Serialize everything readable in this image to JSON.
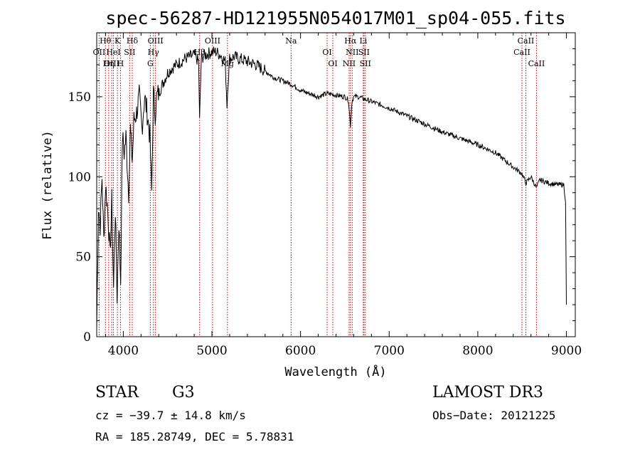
{
  "chart_data": {
    "type": "line",
    "title": "spec-56287-HD121955N054017M01_sp04-055.fits",
    "xlabel": "Wavelength (Å)",
    "ylabel": "Flux (relative)",
    "xlim": [
      3700,
      9100
    ],
    "ylim": [
      0,
      190
    ],
    "xticks": [
      4000,
      5000,
      6000,
      7000,
      8000,
      9000
    ],
    "yticks": [
      0,
      50,
      100,
      150
    ],
    "series": [
      {
        "name": "spectrum",
        "x": [
          3700,
          3720,
          3740,
          3760,
          3780,
          3800,
          3830,
          3850,
          3870,
          3890,
          3910,
          3930,
          3950,
          3970,
          3990,
          4010,
          4030,
          4060,
          4080,
          4101,
          4120,
          4150,
          4180,
          4210,
          4240,
          4270,
          4300,
          4320,
          4340,
          4360,
          4380,
          4420,
          4460,
          4500,
          4550,
          4600,
          4650,
          4700,
          4750,
          4800,
          4850,
          4861,
          4880,
          4920,
          4960,
          5000,
          5050,
          5100,
          5150,
          5170,
          5183,
          5200,
          5250,
          5300,
          5350,
          5400,
          5500,
          5600,
          5700,
          5800,
          5890,
          5950,
          6000,
          6100,
          6200,
          6300,
          6400,
          6500,
          6540,
          6563,
          6580,
          6600,
          6650,
          6700,
          6800,
          7000,
          7200,
          7400,
          7600,
          7800,
          8000,
          8200,
          8400,
          8498,
          8542,
          8600,
          8662,
          8700,
          8800,
          8900,
          8970,
          8990,
          9000
        ],
        "y": [
          5,
          82,
          70,
          100,
          60,
          95,
          75,
          50,
          85,
          30,
          80,
          25,
          72,
          35,
          125,
          115,
          125,
          90,
          130,
          110,
          135,
          140,
          150,
          130,
          150,
          140,
          125,
          90,
          152,
          140,
          150,
          155,
          160,
          165,
          168,
          170,
          172,
          174,
          175,
          176,
          172,
          135,
          174,
          176,
          177,
          178,
          178,
          176,
          172,
          145,
          160,
          174,
          175,
          174,
          173,
          172,
          170,
          166,
          162,
          160,
          158,
          156,
          154,
          152,
          150,
          152,
          151,
          150,
          148,
          132,
          147,
          150,
          150,
          149,
          147,
          143,
          138,
          133,
          128,
          124,
          120,
          115,
          106,
          102,
          96,
          100,
          93,
          98,
          96,
          95,
          95,
          85,
          20
        ]
      }
    ],
    "lines": [
      {
        "label": "Hθ",
        "x": 3798
      },
      {
        "label": "OII",
        "x": 3727
      },
      {
        "label": "OIII",
        "x": 3869
      },
      {
        "label": "K",
        "x": 3934
      },
      {
        "label": "HeI",
        "x": 3889
      },
      {
        "label": "Hη",
        "x": 3835
      },
      {
        "label": "Hδ",
        "x": 4101
      },
      {
        "label": "SII",
        "x": 4072
      },
      {
        "label": "H",
        "x": 3968
      },
      {
        "label": "OIII",
        "x": 4363
      },
      {
        "label": "Hγ",
        "x": 4340
      },
      {
        "label": "G",
        "x": 4305
      },
      {
        "label": "OIII",
        "x": 5007
      },
      {
        "label": "Hβ",
        "x": 4861
      },
      {
        "label": "Mg",
        "x": 5175
      },
      {
        "label": "Na",
        "x": 5893
      },
      {
        "label": "OI",
        "x": 6300
      },
      {
        "label": "OI",
        "x": 6364
      },
      {
        "label": "Hα",
        "x": 6563
      },
      {
        "label": "SII",
        "x": 6716
      },
      {
        "label": "NII",
        "x": 6548
      },
      {
        "label": "Li",
        "x": 6708
      },
      {
        "label": "NII",
        "x": 6583
      },
      {
        "label": "SII",
        "x": 6731
      },
      {
        "label": "CaII",
        "x": 8542
      },
      {
        "label": "CaII",
        "x": 8498
      },
      {
        "label": "CaII",
        "x": 8662
      }
    ]
  },
  "info": {
    "object_type": "STAR",
    "subclass": "G3",
    "survey": "LAMOST DR3",
    "cz": "cz = −39.7 ± 14.8 km/s",
    "obs_date": "Obs−Date: 20121225",
    "coords": "RA = 185.28749, DEC =   5.78831"
  }
}
